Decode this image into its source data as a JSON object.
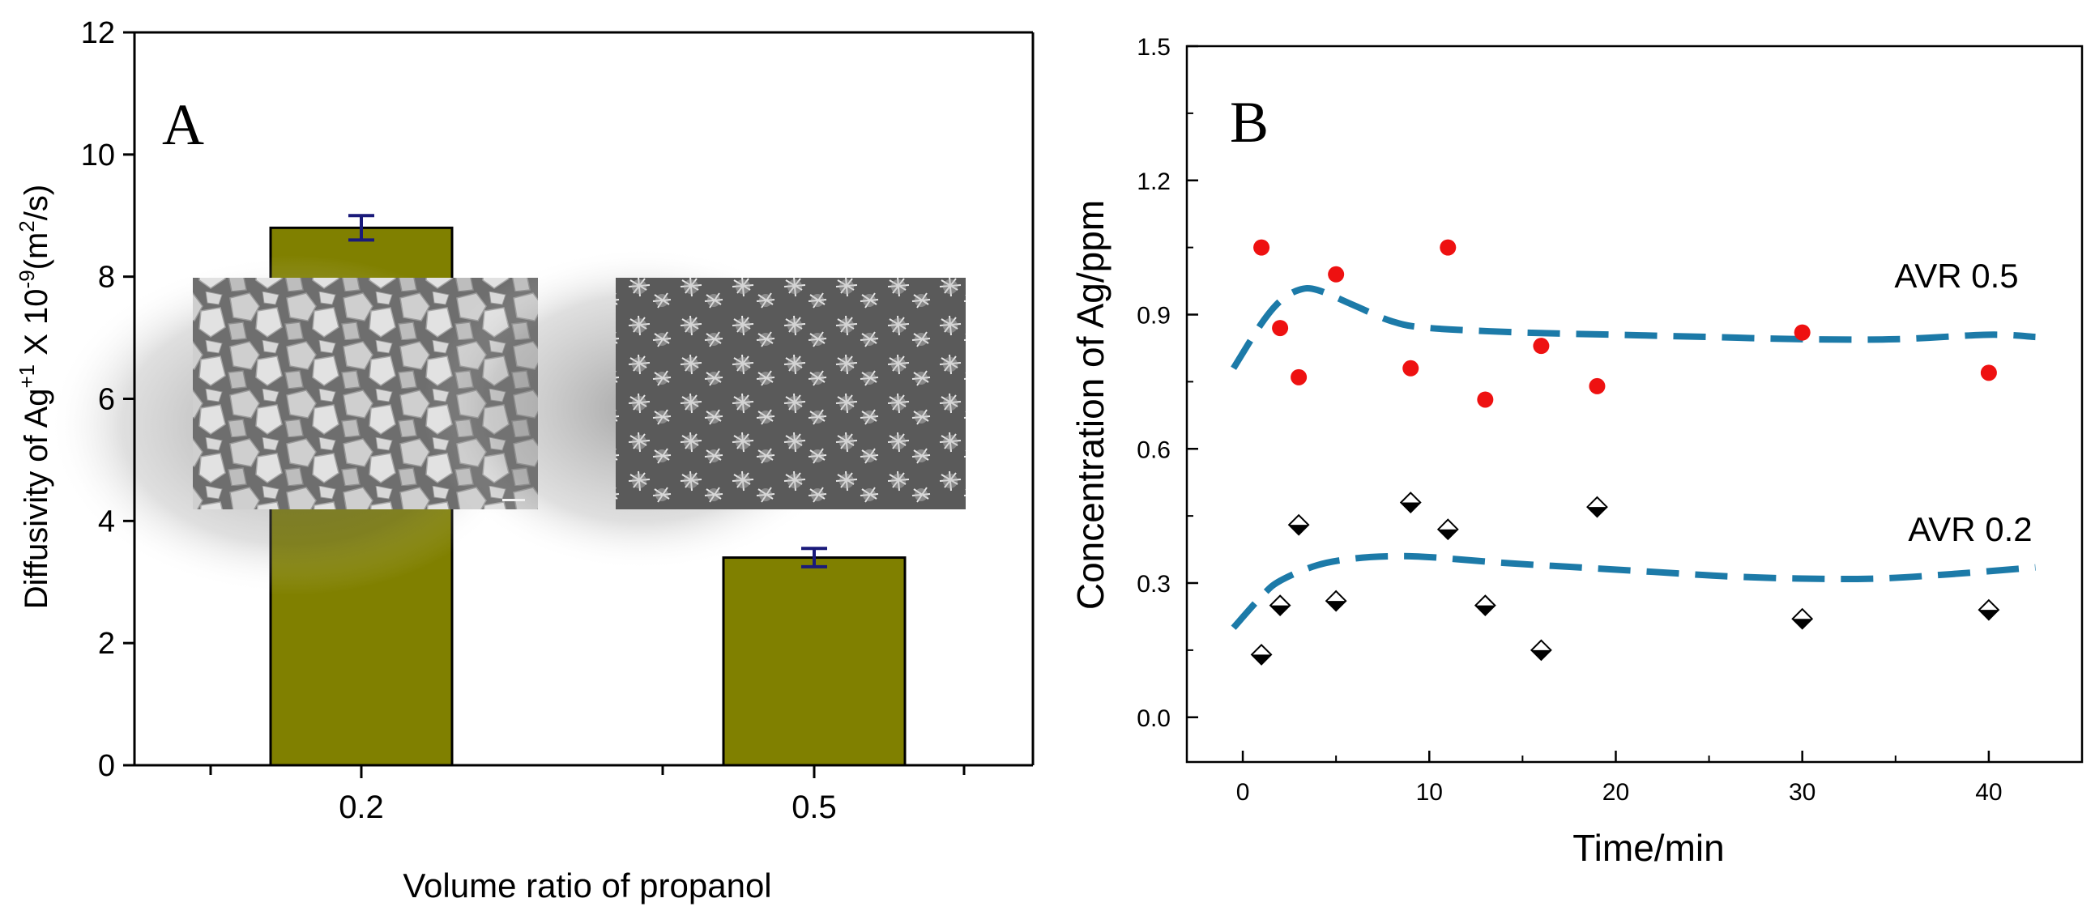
{
  "chart_data": [
    {
      "panel": "A",
      "type": "bar",
      "panel_label": "A",
      "categories": [
        "0.2",
        "0.5"
      ],
      "values": [
        8.8,
        3.4
      ],
      "errors": [
        0.2,
        0.15
      ],
      "xlabel": "Volume ratio of propanol",
      "ylabel_parts": {
        "base": "Diffusivity of Ag",
        "sup1": "+1",
        "mid": " X 10",
        "sup2": "-9",
        "tail": "(m",
        "sup3": "2",
        "end": "/s)"
      },
      "ylim": [
        0,
        12
      ],
      "yticks": [
        "0",
        "2",
        "4",
        "6",
        "8",
        "10",
        "12"
      ],
      "bar_color": "#808000",
      "error_color": "#1a1a7a"
    },
    {
      "panel": "B",
      "type": "scatter",
      "panel_label": "B",
      "xlabel": "Time/min",
      "ylabel": "Concentration of Ag/ppm",
      "xlim": [
        -3,
        45
      ],
      "ylim": [
        -0.1,
        1.5
      ],
      "xticks": [
        "0",
        "10",
        "20",
        "30",
        "40"
      ],
      "yticks": [
        "0.0",
        "0.3",
        "0.6",
        "0.9",
        "1.2",
        "1.5"
      ],
      "series": [
        {
          "name": "AVR 0.5",
          "marker": "circle",
          "color": "#ee1111",
          "x": [
            1,
            2,
            3,
            5,
            9,
            11,
            13,
            16,
            19,
            30,
            40
          ],
          "y": [
            1.05,
            0.87,
            0.76,
            0.99,
            0.78,
            1.05,
            0.71,
            0.83,
            0.74,
            0.86,
            0.77
          ],
          "trend_x": [
            -0.5,
            1,
            2,
            3,
            4,
            6,
            8,
            10,
            15,
            20,
            25,
            30,
            35,
            40,
            42.5
          ],
          "trend_y": [
            0.78,
            0.88,
            0.93,
            0.955,
            0.955,
            0.92,
            0.885,
            0.87,
            0.86,
            0.855,
            0.85,
            0.845,
            0.845,
            0.855,
            0.85
          ]
        },
        {
          "name": "AVR 0.2",
          "marker": "diamond",
          "color": "#000000",
          "x": [
            1,
            2,
            3,
            5,
            9,
            11,
            13,
            16,
            19,
            30,
            40
          ],
          "y": [
            0.14,
            0.25,
            0.43,
            0.26,
            0.48,
            0.42,
            0.25,
            0.15,
            0.47,
            0.22,
            0.24
          ],
          "trend_x": [
            -0.5,
            1,
            2,
            4,
            6,
            8,
            10,
            14,
            18,
            22,
            26,
            30,
            34,
            38,
            42.5
          ],
          "trend_y": [
            0.2,
            0.27,
            0.305,
            0.34,
            0.355,
            0.36,
            0.358,
            0.345,
            0.335,
            0.325,
            0.315,
            0.31,
            0.31,
            0.32,
            0.335
          ]
        }
      ],
      "trend_color": "#1c7aa8"
    }
  ]
}
